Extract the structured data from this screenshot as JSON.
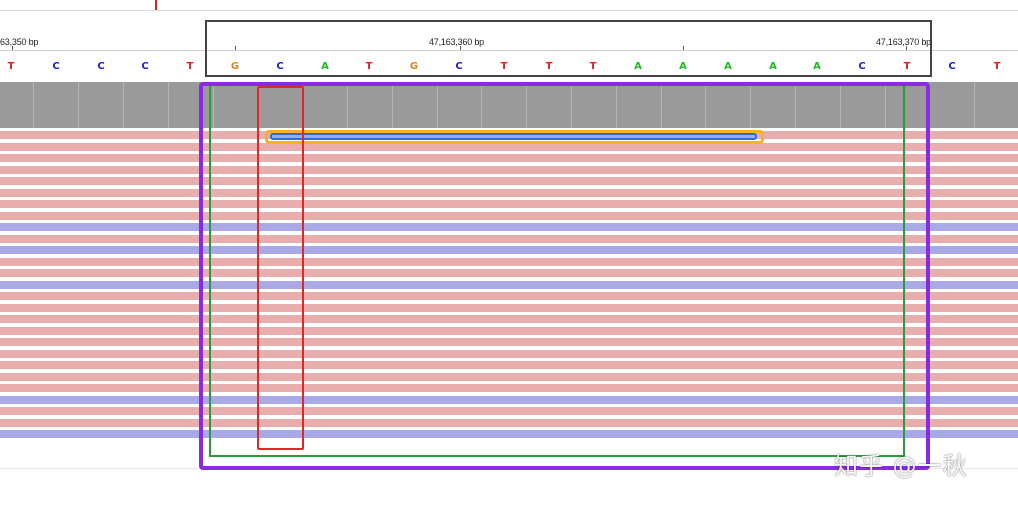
{
  "ruler": {
    "labels": [
      "63,350 bp",
      "47,163,360 bp",
      "47,163,370 bp"
    ]
  },
  "sequence": {
    "bases": [
      "T",
      "C",
      "C",
      "C",
      "T",
      "G",
      "C",
      "A",
      "T",
      "G",
      "C",
      "T",
      "T",
      "T",
      "A",
      "A",
      "A",
      "A",
      "A",
      "C",
      "T",
      "C",
      "T"
    ]
  },
  "colors": {
    "A": "#22b822",
    "C": "#2020d0",
    "G": "#d8861a",
    "T": "#e02020",
    "coverage": "#9a9a9a",
    "read_forward": "#e8aeae",
    "read_reverse": "#a9a9e8",
    "box_gray": "#444444",
    "box_purple": "#8a2be2",
    "box_green": "#2a9d3a",
    "box_red": "#e02828",
    "highlight_outer": "#f5b12a",
    "highlight_inner": "#2f6bd8",
    "marker": "#e02020"
  },
  "reads": {
    "strands": [
      "f",
      "f",
      "f",
      "f",
      "f",
      "f",
      "f",
      "f",
      "r",
      "f",
      "r",
      "f",
      "f",
      "r",
      "f",
      "f",
      "f",
      "f",
      "f",
      "f",
      "f",
      "f",
      "f",
      "r",
      "f",
      "f",
      "r"
    ]
  },
  "watermark": {
    "text": "知乎 @一秋"
  }
}
